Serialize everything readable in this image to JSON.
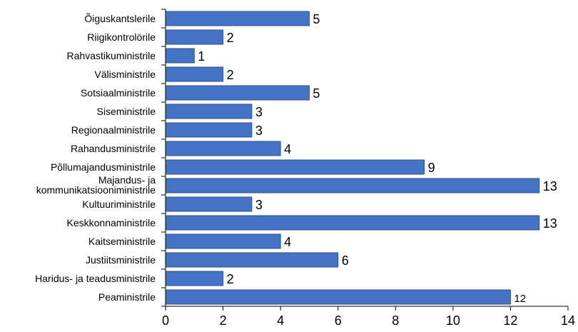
{
  "chart_data": {
    "type": "bar",
    "orientation": "horizontal",
    "categories": [
      "Õiguskantslerile",
      "Riigikontrolörile",
      "Rahvastikuministrile",
      "Välisministrile",
      "Sotsiaalministrile",
      "Siseministrile",
      "Regionaalministrile",
      "Rahandusministrile",
      "Põllumajandusministrile",
      "Majandus- ja kommunikatsiooniministrile",
      "Kultuuriministrile",
      "Keskkonnaministrile",
      "Kaitseministrile",
      "Justiitsministrile",
      "Haridus- ja teadusministrile",
      "Peaministrile"
    ],
    "category_lines": {
      "9": [
        "Majandus- ja",
        "kommunikatsiooniministrile"
      ]
    },
    "values": [
      5,
      2,
      1,
      2,
      5,
      3,
      3,
      4,
      9,
      13,
      3,
      13,
      4,
      6,
      2,
      12
    ],
    "value_labels": [
      "5",
      "2",
      "1",
      "2",
      "5",
      "3",
      "3",
      "4",
      "9",
      "13",
      "3",
      "13",
      "4",
      "6",
      "2",
      "12"
    ],
    "xlim": [
      0,
      14
    ],
    "xticks": [
      "0",
      "2",
      "4",
      "6",
      "8",
      "10",
      "12",
      "14"
    ],
    "title": "",
    "xlabel": "",
    "ylabel": "",
    "grid": false,
    "legend": "none",
    "colors": {
      "bar": "#4472c4",
      "bar_edge": "#2f528f",
      "axis": "#000000"
    }
  }
}
